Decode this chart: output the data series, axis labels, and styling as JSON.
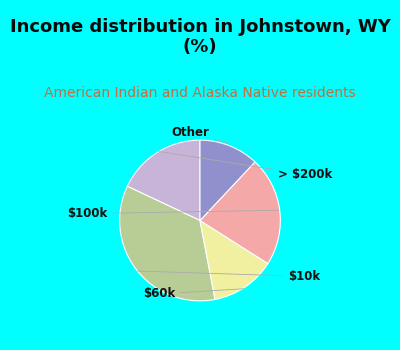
{
  "title": "Income distribution in Johnstown, WY\n(%)",
  "subtitle": "American Indian and Alaska Native residents",
  "title_fontsize": 13,
  "subtitle_fontsize": 10,
  "title_color": "#0a0a0a",
  "subtitle_color": "#c07040",
  "background_color": "#00ffff",
  "slices": [
    {
      "label": "> $200k",
      "value": 18,
      "color": "#c8b4d8"
    },
    {
      "label": "$10k",
      "value": 35,
      "color": "#b8cc96"
    },
    {
      "label": "$60k",
      "value": 13,
      "color": "#f0f0a0"
    },
    {
      "label": "$100k",
      "value": 22,
      "color": "#f4a8a8"
    },
    {
      "label": "Other",
      "value": 12,
      "color": "#9090cc"
    }
  ],
  "label_fontsize": 8.5,
  "label_color": "#111111",
  "startangle": 90
}
